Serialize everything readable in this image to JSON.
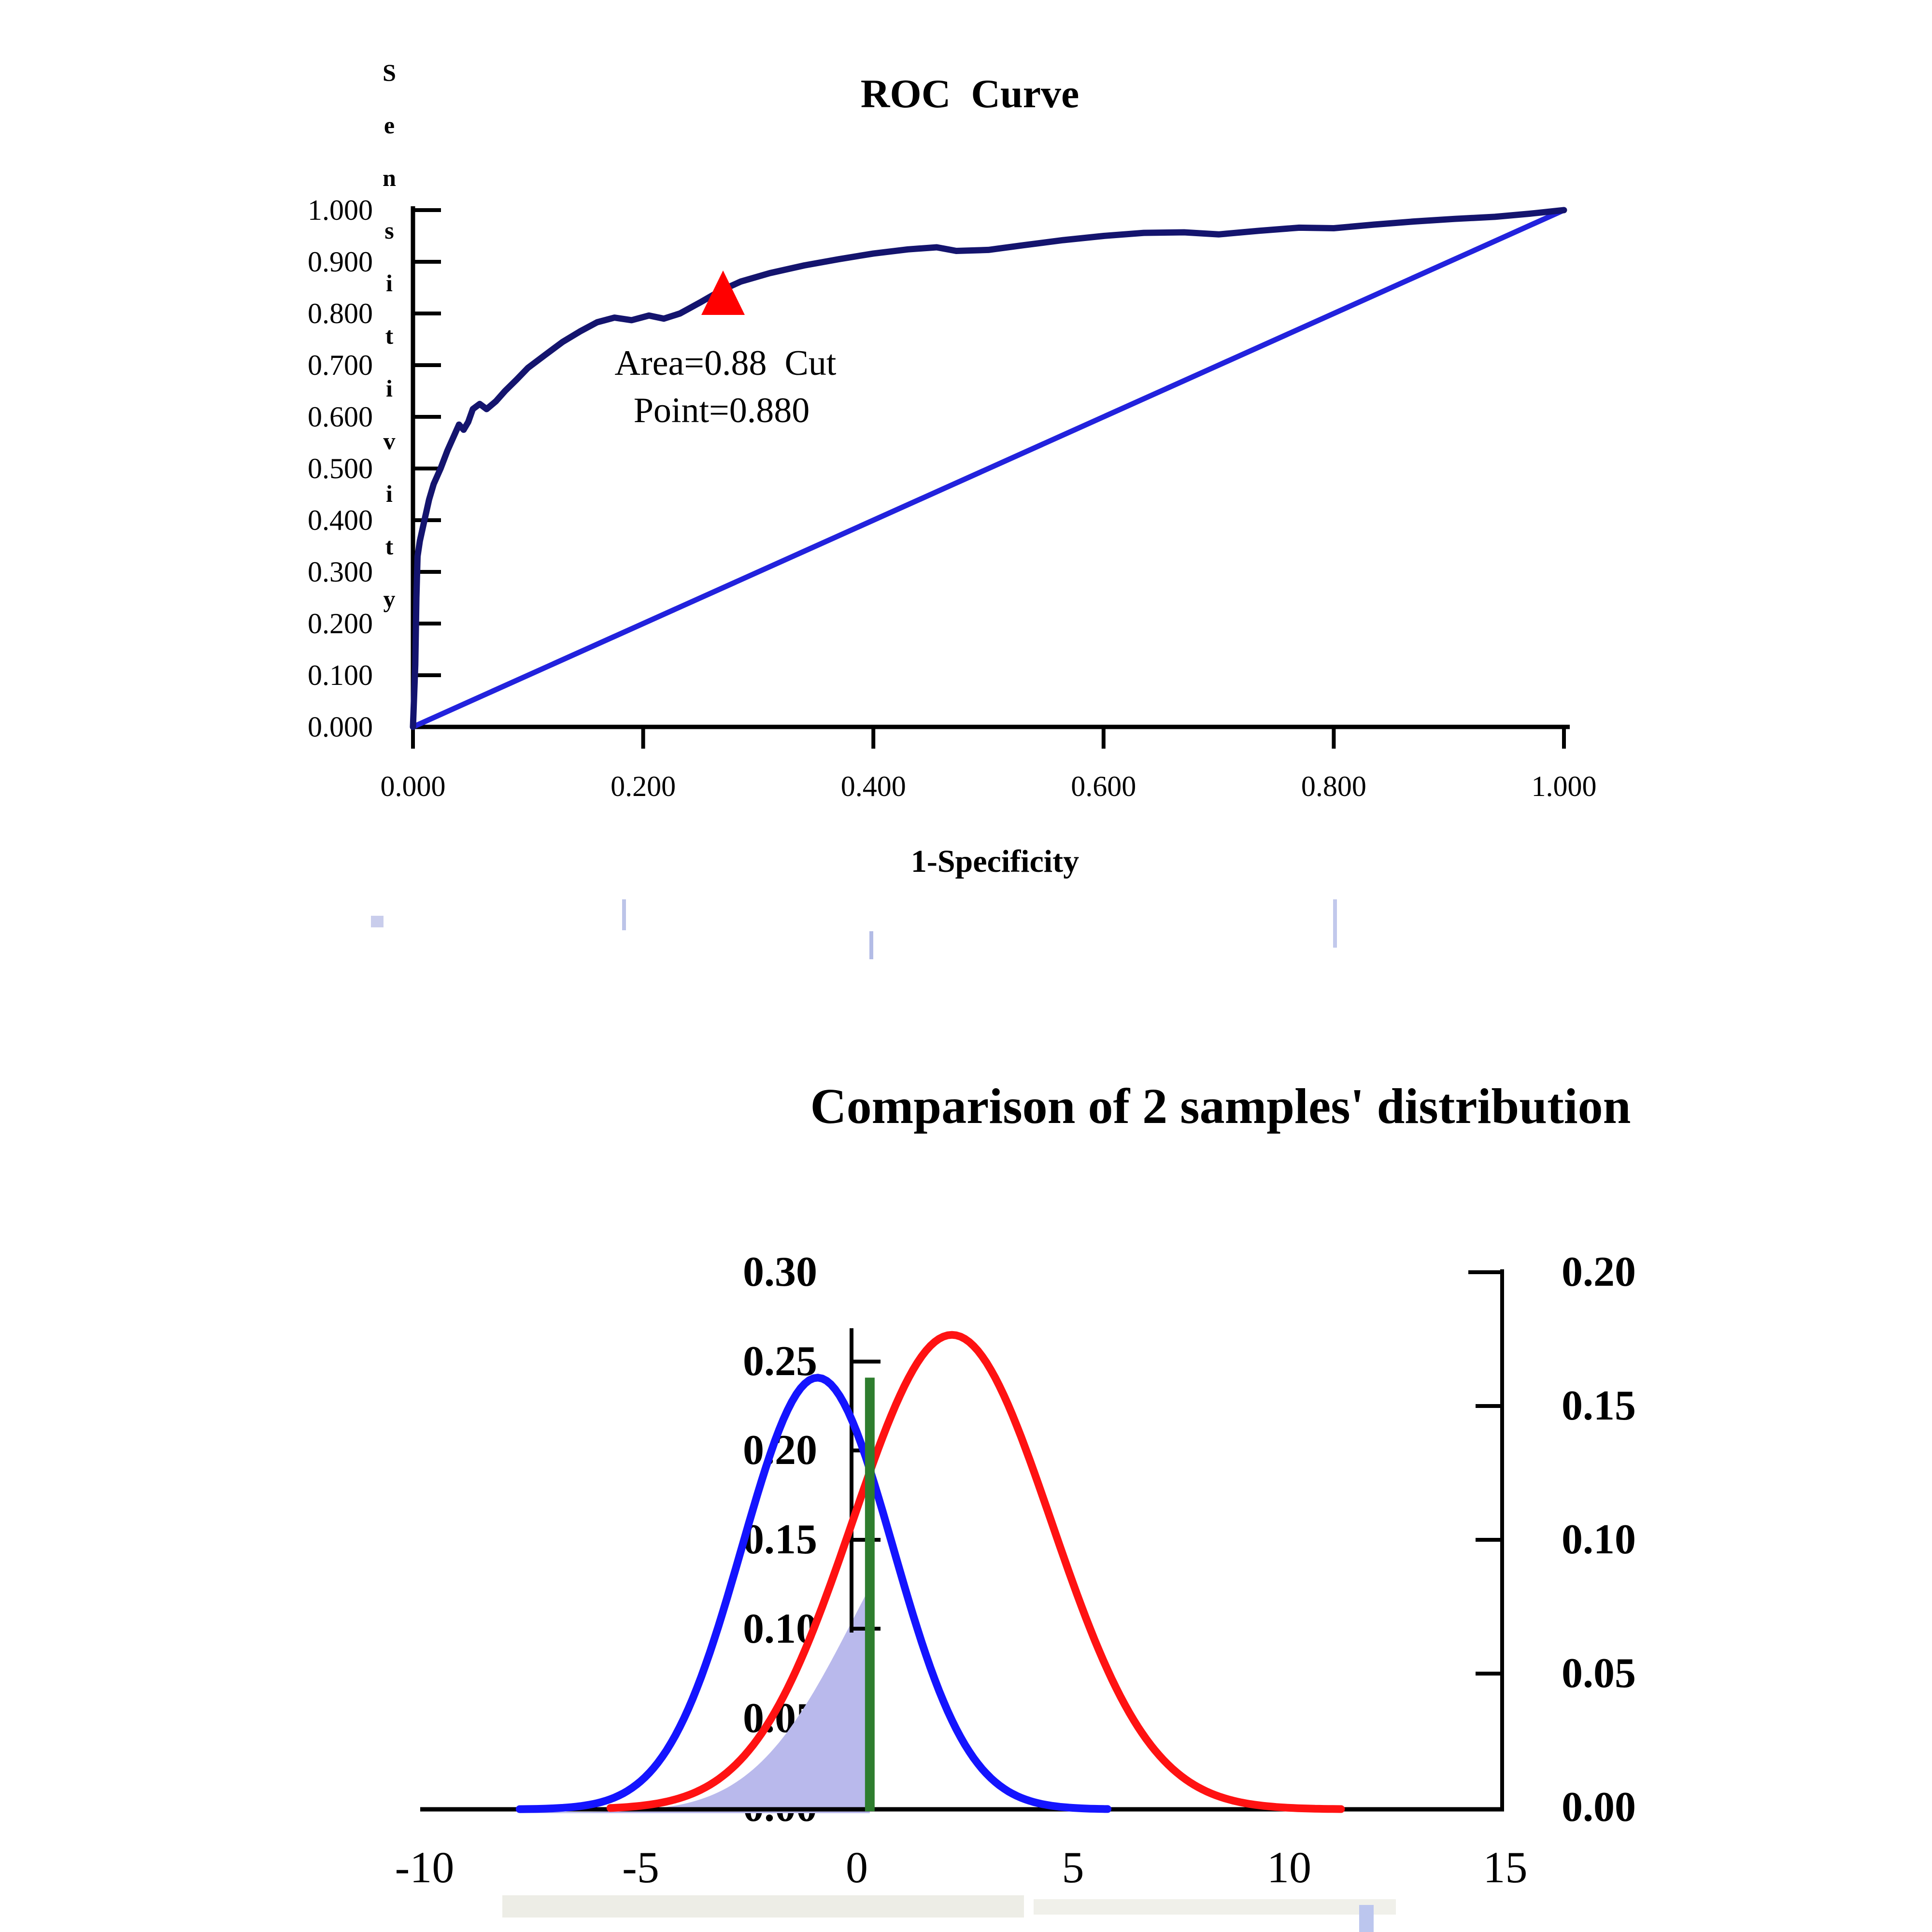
{
  "roc": {
    "title": "ROC  Curve",
    "ylabel": "Sensitivity",
    "xlabel": "1-Specificity",
    "annotation_line1": "Area=0.88  Cut",
    "annotation_line2": "Point=0.880",
    "y_ticks": [
      "1.000",
      "0.900",
      "0.800",
      "0.700",
      "0.600",
      "0.500",
      "0.400",
      "0.300",
      "0.200",
      "0.100",
      "0.000"
    ],
    "x_ticks": [
      "0.000",
      "0.200",
      "0.400",
      "0.600",
      "0.800",
      "1.000"
    ]
  },
  "dist": {
    "title": "Comparison of 2 samples' distribution",
    "left_y_ticks": [
      "0.30",
      "0.25",
      "0.20",
      "0.15",
      "0.10",
      "0.05",
      "0.00"
    ],
    "right_y_ticks": [
      "0.20",
      "0.15",
      "0.10",
      "0.05",
      "0.00"
    ],
    "x_ticks": [
      "-10",
      "-5",
      "0",
      "5",
      "10",
      "15"
    ]
  },
  "colors": {
    "roc_curve": "#14146e",
    "diagonal_line": "#2222dd",
    "marker_triangle": "#ff0000",
    "blue_curve": "#1414ff",
    "red_curve": "#ff1212",
    "cut_line": "#2e7d2e",
    "shade": "#b9b9ec",
    "axis": "#000000"
  },
  "chart_data": [
    {
      "type": "line",
      "title": "ROC Curve",
      "xlabel": "1-Specificity",
      "ylabel": "Sensitivity",
      "xlim": [
        0,
        1
      ],
      "ylim": [
        0,
        1
      ],
      "x_ticks": [
        0.0,
        0.2,
        0.4,
        0.6,
        0.8,
        1.0
      ],
      "y_ticks": [
        0.0,
        0.1,
        0.2,
        0.3,
        0.4,
        0.5,
        0.6,
        0.7,
        0.8,
        0.9,
        1.0
      ],
      "grid": false,
      "annotations": [
        {
          "text": "Area=0.88  Cut Point=0.880",
          "marker": "red-triangle",
          "x": 0.27,
          "y": 0.85
        }
      ],
      "series": [
        {
          "name": "ROC curve",
          "points": [
            [
              0,
              0
            ],
            [
              0.002,
              0.12
            ],
            [
              0.003,
              0.25
            ],
            [
              0.004,
              0.33
            ],
            [
              0.006,
              0.36
            ],
            [
              0.01,
              0.4
            ],
            [
              0.014,
              0.44
            ],
            [
              0.018,
              0.47
            ],
            [
              0.024,
              0.5
            ],
            [
              0.03,
              0.535
            ],
            [
              0.036,
              0.565
            ],
            [
              0.04,
              0.585
            ],
            [
              0.044,
              0.575
            ],
            [
              0.048,
              0.59
            ],
            [
              0.052,
              0.615
            ],
            [
              0.058,
              0.625
            ],
            [
              0.064,
              0.615
            ],
            [
              0.072,
              0.63
            ],
            [
              0.08,
              0.65
            ],
            [
              0.09,
              0.672
            ],
            [
              0.1,
              0.695
            ],
            [
              0.115,
              0.72
            ],
            [
              0.13,
              0.745
            ],
            [
              0.145,
              0.765
            ],
            [
              0.16,
              0.783
            ],
            [
              0.175,
              0.792
            ],
            [
              0.19,
              0.787
            ],
            [
              0.205,
              0.796
            ],
            [
              0.218,
              0.79
            ],
            [
              0.232,
              0.8
            ],
            [
              0.25,
              0.822
            ],
            [
              0.268,
              0.845
            ],
            [
              0.285,
              0.862
            ],
            [
              0.31,
              0.878
            ],
            [
              0.34,
              0.893
            ],
            [
              0.37,
              0.905
            ],
            [
              0.4,
              0.916
            ],
            [
              0.43,
              0.924
            ],
            [
              0.455,
              0.928
            ],
            [
              0.472,
              0.921
            ],
            [
              0.5,
              0.923
            ],
            [
              0.53,
              0.932
            ],
            [
              0.565,
              0.942
            ],
            [
              0.6,
              0.95
            ],
            [
              0.635,
              0.956
            ],
            [
              0.67,
              0.957
            ],
            [
              0.7,
              0.953
            ],
            [
              0.735,
              0.96
            ],
            [
              0.77,
              0.966
            ],
            [
              0.8,
              0.965
            ],
            [
              0.835,
              0.972
            ],
            [
              0.87,
              0.978
            ],
            [
              0.905,
              0.983
            ],
            [
              0.94,
              0.987
            ],
            [
              0.97,
              0.993
            ],
            [
              1.0,
              1.0
            ]
          ]
        },
        {
          "name": "reference diagonal",
          "points": [
            [
              0,
              0
            ],
            [
              1,
              1
            ]
          ]
        }
      ]
    },
    {
      "type": "line",
      "title": "Comparison of 2 samples' distribution",
      "xlim": [
        -10,
        15
      ],
      "x_ticks": [
        -10,
        -5,
        0,
        5,
        10,
        15
      ],
      "left_axis": {
        "range": [
          0,
          0.3
        ],
        "ticks": [
          0.0,
          0.05,
          0.1,
          0.15,
          0.2,
          0.25,
          0.3
        ]
      },
      "right_axis": {
        "range": [
          0,
          0.2
        ],
        "ticks": [
          0.0,
          0.05,
          0.1,
          0.15,
          0.2
        ]
      },
      "series": [
        {
          "name": "sample 1 density (blue, left axis)",
          "distribution": "normal",
          "mean": -0.91,
          "sd": 1.75,
          "peak_left_scale": 0.242,
          "x_drawn": [
            -7.8,
            5.8
          ]
        },
        {
          "name": "sample 2 density (red, right axis)",
          "distribution": "normal",
          "mean": 2.2,
          "sd": 2.3,
          "peak_left_scale": 0.266,
          "x_drawn": [
            -5.7,
            11.2
          ]
        }
      ],
      "cut_line": {
        "x": 0.3,
        "top_left_scale": 0.242
      },
      "shaded_region": {
        "description": "area under sample-2 density (scaled 2/3, left scale) left of cut line",
        "x_range": [
          -7.8,
          0.3
        ],
        "height_at_cut_left_scale": 0.125
      }
    }
  ]
}
